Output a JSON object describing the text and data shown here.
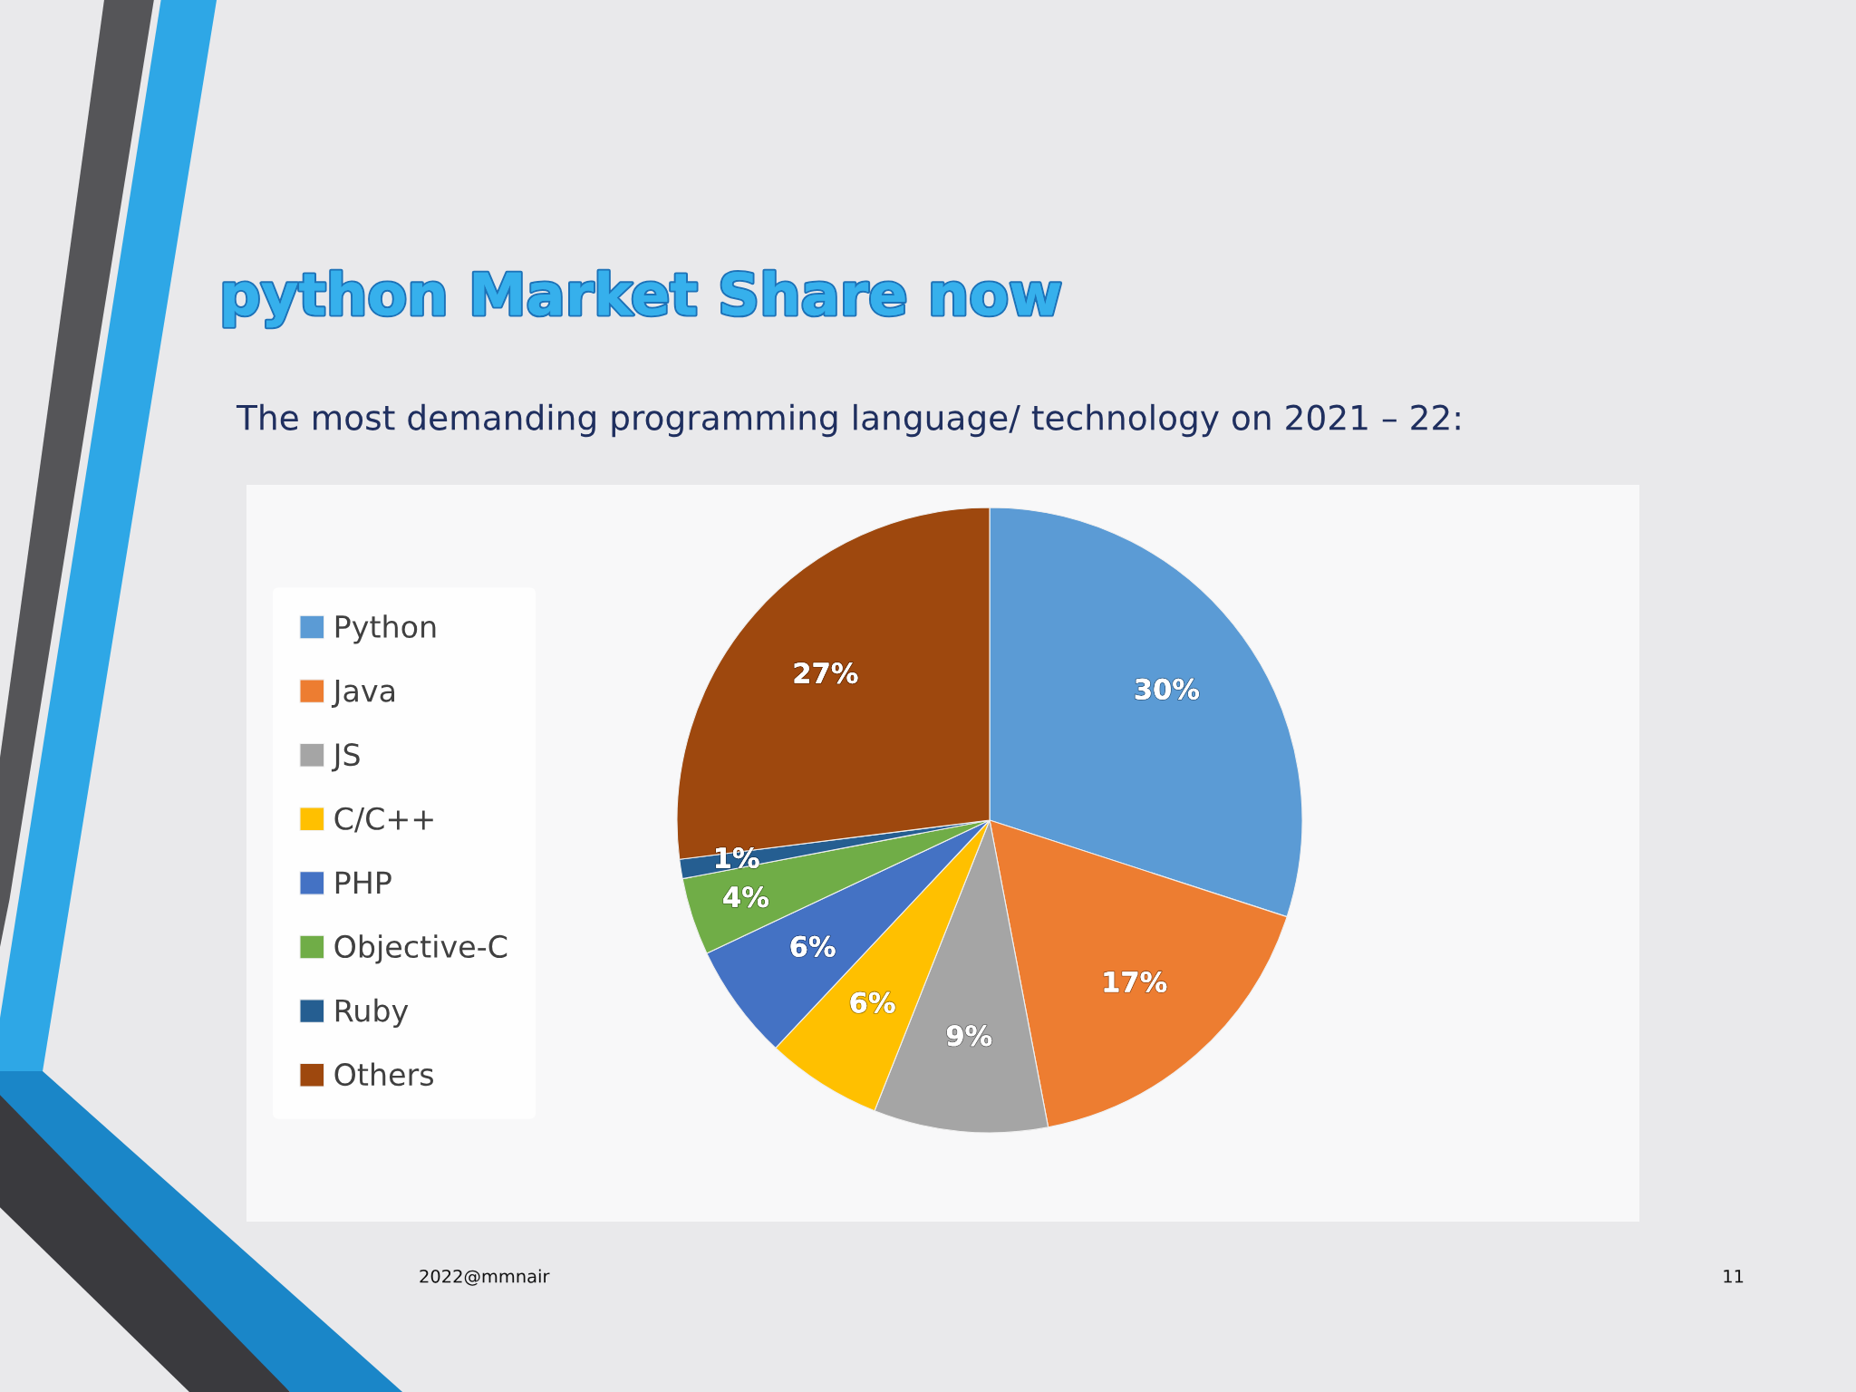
{
  "chart_data": {
    "type": "pie",
    "title": "python Market Share now",
    "subtitle": "The most demanding programming language/ technology on 2021 – 22:",
    "categories": [
      "Python",
      "Java",
      "JS",
      "C/C++",
      "PHP",
      "Objective-C",
      "Ruby",
      "Others"
    ],
    "values": [
      30,
      17,
      9,
      6,
      6,
      4,
      1,
      27
    ],
    "colors": [
      "#5b9bd5",
      "#ed7d31",
      "#a5a5a5",
      "#ffc000",
      "#4472c4",
      "#70ad47",
      "#255e91",
      "#9e480e"
    ],
    "value_labels": [
      "30%",
      "17%",
      "9%",
      "6%",
      "6%",
      "4%",
      "1%",
      "27%"
    ],
    "legend": "left",
    "annotations": [
      "2022@mmnair",
      "11"
    ]
  }
}
